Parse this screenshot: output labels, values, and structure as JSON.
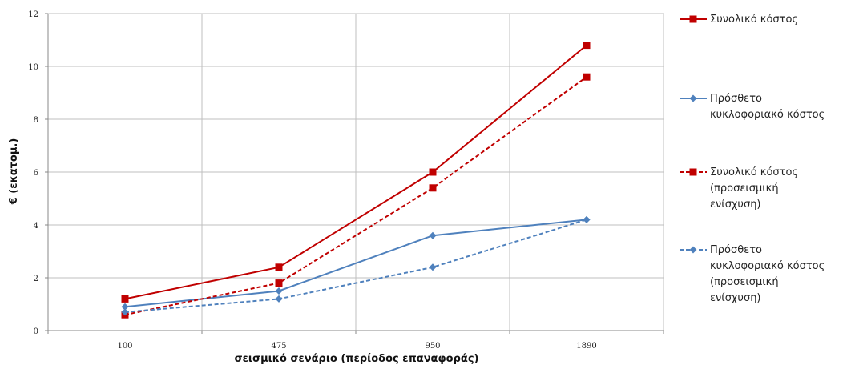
{
  "chart_data": {
    "type": "line",
    "categories": [
      "100",
      "475",
      "950",
      "1890"
    ],
    "xlabel": "σεισμικό σενάριο (περίοδος επαναφοράς)",
    "ylabel": "€ (εκατομ.)",
    "ylim": [
      0,
      12
    ],
    "yticks": [
      "0",
      "2",
      "4",
      "6",
      "8",
      "10",
      "12"
    ],
    "grid": true,
    "legend_position": "right",
    "series": [
      {
        "name": [
          "Συνολικό κόστος"
        ],
        "values": [
          1.2,
          2.4,
          6.0,
          10.8
        ],
        "color": "#c00000",
        "marker": "square",
        "dash": false
      },
      {
        "name": [
          "Πρόσθετο",
          "κυκλοφοριακό κόστος"
        ],
        "values": [
          0.9,
          1.5,
          3.6,
          4.2
        ],
        "color": "#4f81bd",
        "marker": "diamond",
        "dash": false
      },
      {
        "name": [
          "Συνολικό κόστος",
          "(προσεισμική",
          "ενίσχυση)"
        ],
        "values": [
          0.6,
          1.8,
          5.4,
          9.6
        ],
        "color": "#c00000",
        "marker": "square",
        "dash": true
      },
      {
        "name": [
          "Πρόσθετο",
          "κυκλοφοριακό κόστος",
          "(προσεισμική",
          "ενίσχυση)"
        ],
        "values": [
          0.7,
          1.2,
          2.4,
          4.2
        ],
        "color": "#4f81bd",
        "marker": "diamond",
        "dash": true
      }
    ]
  }
}
